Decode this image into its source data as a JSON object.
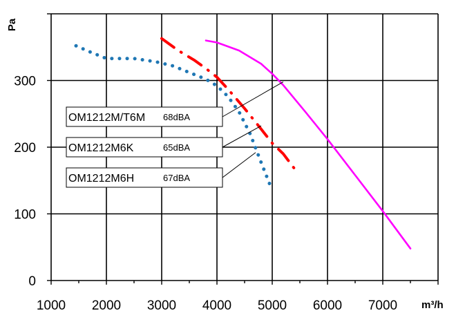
{
  "chart_data": {
    "type": "line",
    "title": "",
    "xlabel": "m³/h",
    "ylabel": "Pa",
    "xlim": [
      1000,
      8000
    ],
    "ylim": [
      0,
      400
    ],
    "x_ticks": [
      1000,
      2000,
      3000,
      4000,
      5000,
      6000,
      7000
    ],
    "x_tick_labels": [
      "1000",
      "2000",
      "3000",
      "4000",
      "5000",
      "6000",
      "7000"
    ],
    "y_ticks": [
      0,
      100,
      200,
      300
    ],
    "y_tick_labels": [
      "0",
      "100",
      "200",
      "300"
    ],
    "grid": true,
    "series": [
      {
        "name": "OM1212M/T6M",
        "noise": "68dBA",
        "color": "#ff00ff",
        "style": "solid",
        "x": [
          3800,
          4000,
          4400,
          4800,
          5000,
          5200,
          5600,
          6000,
          6500,
          7000,
          7500
        ],
        "y": [
          360,
          357,
          345,
          325,
          310,
          293,
          253,
          212,
          158,
          104,
          48
        ]
      },
      {
        "name": "OM1212M6K",
        "noise": "65dBA",
        "color": "#ff0000",
        "style": "dash-dot",
        "x": [
          3000,
          3300,
          3600,
          3800,
          4000,
          4200,
          4500,
          4800,
          5000,
          5200,
          5400
        ],
        "y": [
          363,
          345,
          330,
          318,
          305,
          287,
          258,
          227,
          206,
          190,
          168
        ]
      },
      {
        "name": "OM1212M6H",
        "noise": "67dBA",
        "color": "#1f77b4",
        "style": "dotted",
        "x": [
          1450,
          1700,
          2000,
          2500,
          2900,
          3200,
          3500,
          3800,
          4000,
          4200,
          4400,
          4600,
          4800,
          5000
        ],
        "y": [
          352,
          343,
          333,
          333,
          328,
          322,
          312,
          302,
          292,
          276,
          253,
          220,
          177,
          135
        ]
      }
    ],
    "legend": [
      {
        "name": "OM1212M/T6M",
        "noise": "68dBA",
        "points_to_series": 0
      },
      {
        "name": "OM1212M6K",
        "noise": "65dBA",
        "points_to_series": 1
      },
      {
        "name": "OM1212M6H",
        "noise": "67dBA",
        "points_to_series": 2
      }
    ],
    "legend_placement": "center-left, inside plot"
  }
}
